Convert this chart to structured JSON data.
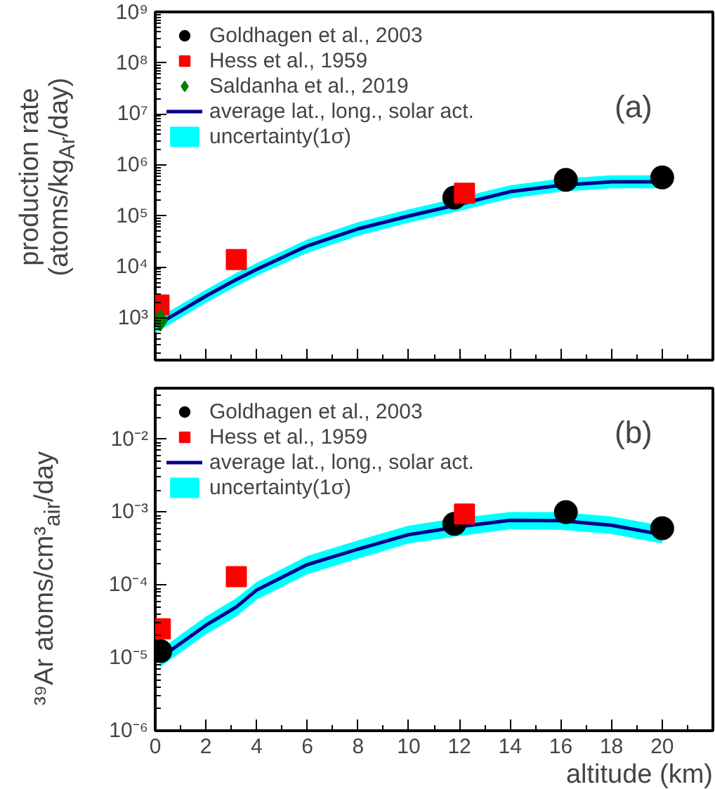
{
  "chart_data": [
    {
      "type": "scatter",
      "ylabel": "production rate (atoms/kg$_{Ar}$/day)",
      "annotations": [
        "(a)"
      ],
      "log": "y",
      "grid": false,
      "legend": "top left",
      "tick_labels": "y",
      "xlim": [
        0,
        22
      ],
      "xticks": [
        {
          "value": 0,
          "label": null
        },
        {
          "value": 2,
          "label": null
        },
        {
          "value": 4,
          "label": null
        },
        {
          "value": 6,
          "label": null
        },
        {
          "value": 8,
          "label": null
        },
        {
          "value": 10,
          "label": null
        },
        {
          "value": 12,
          "label": null
        },
        {
          "value": 14,
          "label": null
        },
        {
          "value": 16,
          "label": null
        },
        {
          "value": 18,
          "label": null
        },
        {
          "value": 20,
          "label": null
        }
      ],
      "ylim": [
        150,
        1000000000
      ],
      "yticks": [
        {
          "value": 1000,
          "label": "10³"
        },
        {
          "value": 10000,
          "label": "10⁴"
        },
        {
          "value": 100000,
          "label": "10⁵"
        },
        {
          "value": 1000000,
          "label": "10⁶"
        },
        {
          "value": 10000000,
          "label": "10⁷"
        },
        {
          "value": 100000000,
          "label": "10⁸"
        },
        {
          "value": 1000000000,
          "label": "10⁹"
        }
      ],
      "series": [
        {
          "name": "Goldhagen et al., 2003",
          "type": "scatter",
          "marker": "circle",
          "color": "#000000",
          "x": [
            11.8,
            16.2,
            20
          ],
          "values": [
            230000,
            510000,
            570000
          ]
        },
        {
          "name": "Hess et al., 1959",
          "type": "scatter",
          "marker": "square",
          "color": "#ff0000",
          "x": [
            0.15,
            3.2,
            12.2
          ],
          "values": [
            1800,
            14000,
            280000
          ]
        },
        {
          "name": "Saldanha et al., 2019",
          "type": "scatter",
          "marker": "diamond",
          "color": "#008000",
          "x": [
            0.2
          ],
          "values": [
            900
          ]
        },
        {
          "name": "average lat., long., solar act.",
          "type": "line",
          "color": "#00008b",
          "x": [
            0,
            2,
            3.2,
            4,
            6,
            8,
            10,
            12,
            14,
            16,
            18,
            20
          ],
          "values": [
            700,
            2700,
            5700,
            9000,
            26000,
            56000,
            100000,
            170000,
            300000,
            400000,
            470000,
            470000
          ],
          "lower": [
            510,
            2000,
            4200,
            6700,
            19000,
            41000,
            74000,
            126000,
            220000,
            300000,
            350000,
            350000
          ],
          "upper": [
            940,
            3600,
            7700,
            12000,
            35000,
            76000,
            135000,
            230000,
            400000,
            540000,
            630000,
            630000
          ]
        },
        {
          "name": "uncertainty(1σ)",
          "type": "area",
          "color": "#00ffff"
        }
      ]
    },
    {
      "type": "scatter",
      "ylabel": "³⁹Ar atoms/cm³$_{air}$/day",
      "xlabel": "altitude (km)",
      "annotations": [
        "(b)"
      ],
      "log": "y",
      "grid": false,
      "legend": "top left",
      "xlim": [
        0,
        22
      ],
      "xticks": [
        0,
        2,
        4,
        6,
        8,
        10,
        12,
        14,
        16,
        18,
        20
      ],
      "ylim": [
        1e-06,
        0.05
      ],
      "yticks": [
        {
          "value": 1e-06,
          "label": "10⁻⁶"
        },
        {
          "value": 1e-05,
          "label": "10⁻⁵"
        },
        {
          "value": 0.0001,
          "label": "10⁻⁴"
        },
        {
          "value": 0.001,
          "label": "10⁻³"
        },
        {
          "value": 0.01,
          "label": "10⁻²"
        }
      ],
      "series": [
        {
          "name": "Goldhagen et al., 2003",
          "type": "scatter",
          "marker": "circle",
          "color": "#000000",
          "x": [
            0.2,
            11.8,
            16.2,
            20
          ],
          "values": [
            1.24e-05,
            0.00069,
            0.001,
            0.0006
          ]
        },
        {
          "name": "Hess et al., 1959",
          "type": "scatter",
          "marker": "square",
          "color": "#ff0000",
          "x": [
            0.2,
            3.2,
            12.2
          ],
          "values": [
            2.5e-05,
            0.00013,
            0.00094
          ]
        },
        {
          "name": "average lat., long., solar act.",
          "type": "line",
          "color": "#00008b",
          "x": [
            0.2,
            2,
            3.2,
            4,
            6,
            8,
            10,
            12,
            14,
            16,
            18,
            20
          ],
          "values": [
            1e-05,
            2.8e-05,
            5e-05,
            8.5e-05,
            0.00019,
            0.00031,
            0.00049,
            0.00063,
            0.00077,
            0.00076,
            0.00066,
            0.00049
          ],
          "lower": [
            7.5e-06,
            2.1e-05,
            3.7e-05,
            6.3e-05,
            0.00014,
            0.00023,
            0.00037,
            0.00047,
            0.00058,
            0.00057,
            0.0005,
            0.00037
          ],
          "upper": [
            1.3e-05,
            3.7e-05,
            6.6e-05,
            0.00011,
            0.00025,
            0.00041,
            0.00065,
            0.00083,
            0.001,
            0.001,
            0.00087,
            0.00065
          ]
        },
        {
          "name": "uncertainty(1σ)",
          "type": "area",
          "color": "#00ffff"
        }
      ]
    }
  ]
}
